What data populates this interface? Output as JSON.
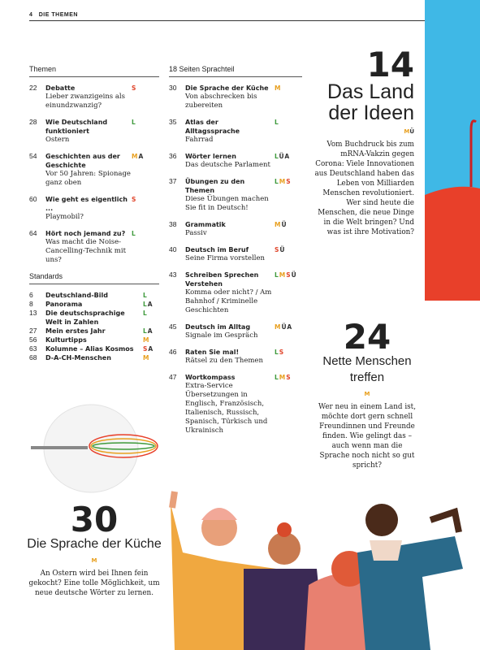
{
  "header": {
    "page_number": "4",
    "section": "DIE THEMEN"
  },
  "themen": {
    "heading": "Themen",
    "entries": [
      {
        "page": "22",
        "title": "Debatte",
        "text": "Lieber zwanzigeins als einundzwanzig?",
        "tags": [
          "S"
        ]
      },
      {
        "page": "28",
        "title": "Wie Deutschland funktioniert",
        "text": "Ostern",
        "tags": [
          "L"
        ]
      },
      {
        "page": "54",
        "title": "Geschichten aus der Geschichte",
        "text": "Vor 50 Jahren: Spionage ganz oben",
        "tags": [
          "M",
          "A"
        ]
      },
      {
        "page": "60",
        "title": "Wie geht es eigentlich ...",
        "text": "Playmobil?",
        "tags": [
          "S"
        ]
      },
      {
        "page": "64",
        "title": "Hört noch jemand zu?",
        "text": "Was macht die Noise-Cancelling-Technik mit uns?",
        "tags": [
          "L"
        ]
      }
    ]
  },
  "standards": {
    "heading": "Standards",
    "entries": [
      {
        "page": "6",
        "title": "Deutschland-Bild",
        "tags": [
          "L"
        ]
      },
      {
        "page": "8",
        "title": "Panorama",
        "tags": [
          "L",
          "A"
        ]
      },
      {
        "page": "13",
        "title": "Die deutschsprachige Welt in Zahlen",
        "tags": [
          "L"
        ]
      },
      {
        "page": "27",
        "title": "Mein erstes Jahr",
        "tags": [
          "L",
          "A"
        ]
      },
      {
        "page": "56",
        "title": "Kulturtipps",
        "tags": [
          "M"
        ]
      },
      {
        "page": "63",
        "title": "Kolumne – Alias Kosmos",
        "tags": [
          "S",
          "A"
        ]
      },
      {
        "page": "68",
        "title": "D-A-CH-Menschen",
        "tags": [
          "M"
        ]
      }
    ]
  },
  "sprachteil": {
    "heading": "18 Seiten Sprachteil",
    "entries": [
      {
        "page": "30",
        "title": "Die Sprache der Küche",
        "text": "Von abschrecken bis zubereiten",
        "tags": [
          "M"
        ]
      },
      {
        "page": "35",
        "title": "Atlas der Alltagssprache",
        "text": "Fahrrad",
        "tags": [
          "L"
        ]
      },
      {
        "page": "36",
        "title": "Wörter lernen",
        "text": "Das deutsche Parlament",
        "tags": [
          "L",
          "Ü",
          "A"
        ]
      },
      {
        "page": "37",
        "title": "Übungen zu den Themen",
        "text": "Diese Übungen machen Sie fit in Deutsch!",
        "tags": [
          "L",
          "M",
          "S"
        ]
      },
      {
        "page": "38",
        "title": "Grammatik",
        "text": "Passiv",
        "tags": [
          "M",
          "Ü"
        ]
      },
      {
        "page": "40",
        "title": "Deutsch im Beruf",
        "text": "Seine Firma vorstellen",
        "tags": [
          "S",
          "Ü"
        ]
      },
      {
        "page": "43",
        "title": "Schreiben Sprechen Verstehen",
        "text": "Komma oder nicht? / Am Bahnhof / Kriminelle Geschichten",
        "tags": [
          "L",
          "M",
          "S",
          "Ü"
        ]
      },
      {
        "page": "45",
        "title": "Deutsch im Alltag",
        "text": "Signale im Gespräch",
        "tags": [
          "M",
          "Ü",
          "A"
        ]
      },
      {
        "page": "46",
        "title": "Raten Sie mal!",
        "text": "Rätsel zu den Themen",
        "tags": [
          "L",
          "S"
        ]
      },
      {
        "page": "47",
        "title": "Wortkompass",
        "text": "Extra-Service Übersetzungen in Englisch, Französisch, Italienisch, Russisch, Spanisch, Türkisch und Ukrainisch",
        "tags": [
          "L",
          "M",
          "S"
        ]
      }
    ]
  },
  "features": [
    {
      "page": "14",
      "title": "Das Land der Ideen",
      "tags": [
        "M",
        "Ü"
      ],
      "text": "Vom Buchdruck bis zum mRNA-Vakzin gegen Corona: Viele Innovationen aus Deutschland haben das Leben von Milliarden Menschen revolutioniert. Wer sind heute die Menschen, die neue Dinge in die Welt bringen? Und was ist ihre Motivation?"
    },
    {
      "page": "24",
      "title": "Nette Menschen treffen",
      "tags": [
        "M"
      ],
      "text": "Wer neu in einem Land ist, möchte dort gern schnell Freundinnen und Freunde finden. Wie gelingt das – auch wenn man die Sprache noch nicht so gut spricht?"
    },
    {
      "page": "30",
      "title": "Die Sprache der Küche",
      "tags": [
        "M"
      ],
      "text": "An Ostern wird bei Ihnen fein gekocht? Eine tolle Möglichkeit, um neue deutsche Wörter zu lernen."
    }
  ],
  "tag_colors": {
    "L": "#3f9a3c",
    "M": "#e8a020",
    "S": "#e0442a",
    "Ü": "#333333",
    "A": "#333333"
  }
}
